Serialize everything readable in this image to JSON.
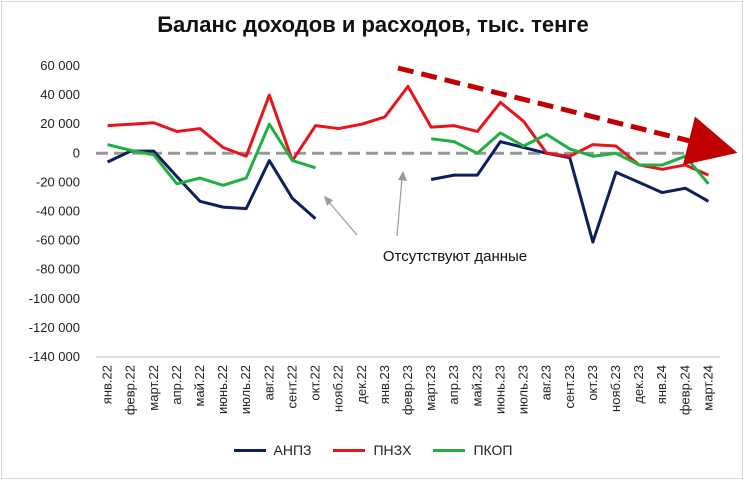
{
  "chart_data": {
    "type": "line",
    "title": "Баланс доходов и расходов, тыс. тенге",
    "xlabel": "",
    "ylabel": "",
    "ylim": [
      -140000,
      60000
    ],
    "yticks": [
      60000,
      40000,
      20000,
      0,
      -20000,
      -40000,
      -60000,
      -80000,
      -100000,
      -120000,
      -140000
    ],
    "ytick_labels": [
      "60 000",
      "40 000",
      "20 000",
      "0",
      "-20 000",
      "-40 000",
      "-60 000",
      "-80 000",
      "-100 000",
      "-120 000",
      "-140 000"
    ],
    "categories": [
      "янв.22",
      "февр.22",
      "март.22",
      "апр.22",
      "май.22",
      "июнь.22",
      "июль.22",
      "авг.22",
      "сент.22",
      "окт.22",
      "нояб.22",
      "дек.22",
      "янв.23",
      "февр.23",
      "март.23",
      "апр.23",
      "май.23",
      "июнь.23",
      "июль.23",
      "авг.23",
      "сент.23",
      "окт.23",
      "нояб.23",
      "дек.23",
      "янв.24",
      "февр.24",
      "март.24"
    ],
    "series": [
      {
        "name": "АНПЗ",
        "color": "#0d1f5c",
        "values": [
          -6000,
          1500,
          1500,
          -16000,
          -33000,
          -37000,
          -38000,
          -5000,
          -31000,
          -45000,
          null,
          null,
          null,
          null,
          -18000,
          -15000,
          -15000,
          8000,
          4000,
          0,
          -3000,
          -61000,
          -13000,
          -20000,
          -27000,
          -24000,
          -33000
        ]
      },
      {
        "name": "ПНЗХ",
        "color": "#e8141c",
        "values": [
          19000,
          20000,
          21000,
          15000,
          17000,
          4000,
          -2000,
          40000,
          -5000,
          19000,
          17000,
          20000,
          25000,
          46000,
          18000,
          19000,
          15000,
          35000,
          22000,
          0,
          -2000,
          6000,
          5000,
          -8000,
          -11000,
          -8000,
          -15000
        ]
      },
      {
        "name": "ПКОП",
        "color": "#1fb040",
        "values": [
          6000,
          2000,
          -1000,
          -21000,
          -17000,
          -22000,
          -17000,
          20000,
          -5000,
          -10000,
          null,
          null,
          null,
          null,
          10000,
          8000,
          0,
          14000,
          5000,
          13000,
          3000,
          -2000,
          0,
          -8000,
          -8000,
          -2000,
          -21000
        ]
      }
    ],
    "annotations": [
      {
        "text": "Отсутствуют данные"
      }
    ],
    "zero_line_color": "#999999",
    "trend_arrow_color": "#c00000",
    "grid": false,
    "legend_position": "bottom"
  }
}
